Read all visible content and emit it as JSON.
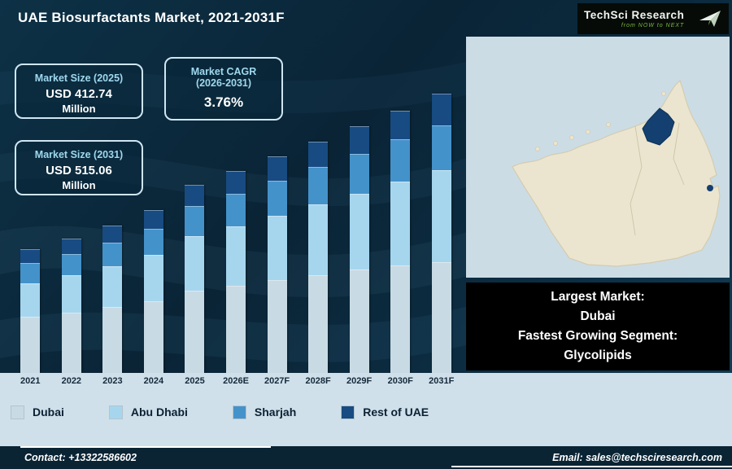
{
  "title": "UAE Biosurfactants Market, 2021-2031F",
  "logo": {
    "brand": "TechSci Research",
    "tagline": "from NOW to NEXT"
  },
  "stat_cards": {
    "size_2025": {
      "label": "Market Size (2025)",
      "value": "USD 412.74",
      "unit": "Million"
    },
    "cagr": {
      "label_line1": "Market CAGR",
      "label_line2": "(2026-2031)",
      "value": "3.76%"
    },
    "size_2031": {
      "label": "Market Size (2031)",
      "value": "USD 515.06",
      "unit": "Million"
    }
  },
  "info_box": {
    "lines": [
      "Largest Market:",
      "Dubai",
      "Fastest Growing Segment:",
      "Glycolipids"
    ]
  },
  "footer": {
    "contact": "Contact: +13322586602",
    "email": "Email: sales@techsciresearch.com"
  },
  "colors": {
    "background": "#0b2a3e",
    "bottom_band": "#cfe0ea",
    "footer": "#0a2434",
    "card_border": "#cfe6f2",
    "card_header_text": "#9fd8ee",
    "map_land": "#ebe5d0",
    "map_highlight": "#134070",
    "logo_green": "#7cb93e"
  },
  "chart_data": {
    "type": "bar",
    "stacked": true,
    "title": "UAE Biosurfactants Market, 2021-2031F",
    "unit": "USD Million",
    "categories": [
      "2021",
      "2022",
      "2023",
      "2024",
      "2025",
      "2026E",
      "2027F",
      "2028F",
      "2029F",
      "2030F",
      "2031F"
    ],
    "series": [
      {
        "name": "Dubai",
        "color": "#c8dae3",
        "values": [
          156,
          160,
          165,
          171,
          181.6,
          186,
          191,
          196,
          201,
          204,
          206
        ]
      },
      {
        "name": "Abu Dhabi",
        "color": "#a6d6ee",
        "values": [
          92,
          97,
          102,
          109,
          119.7,
          126,
          133,
          141,
          148,
          159,
          170
        ]
      },
      {
        "name": "Sharjah",
        "color": "#4492ca",
        "values": [
          54,
          56,
          59,
          61,
          66,
          69,
          71,
          74,
          77,
          79,
          82
        ]
      },
      {
        "name": "Rest of UAE",
        "color": "#174b82",
        "values": [
          38,
          39,
          40,
          43,
          45.44,
          47.3,
          49.4,
          50.1,
          52.4,
          54.4,
          57.06
        ]
      }
    ],
    "totals": [
      340,
      352,
      366,
      384,
      412.74,
      428.3,
      444.4,
      461.1,
      478.4,
      496.4,
      515.06
    ],
    "ylim": [
      200,
      575
    ],
    "grid": false,
    "legend_position": "bottom"
  }
}
